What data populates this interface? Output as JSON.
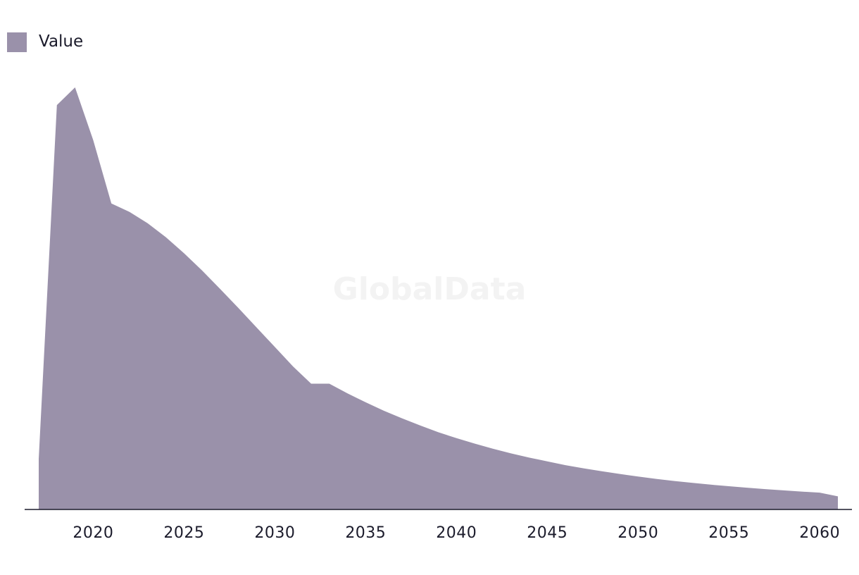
{
  "watermark": "GlobalData",
  "chart_data": {
    "type": "area",
    "title": "",
    "xlabel": "",
    "ylabel": "",
    "legend": {
      "position": "top-left",
      "entries": [
        "Value"
      ]
    },
    "grid": false,
    "xlim": [
      2017,
      2061
    ],
    "ylim": [
      0,
      100
    ],
    "x_ticks": [
      2020,
      2025,
      2030,
      2035,
      2040,
      2045,
      2050,
      2055,
      2060
    ],
    "series": [
      {
        "name": "Value",
        "color": "#9a91aa",
        "x": [
          2017,
          2018,
          2019,
          2020,
          2021,
          2022,
          2023,
          2024,
          2025,
          2026,
          2027,
          2028,
          2029,
          2030,
          2031,
          2032,
          2033,
          2034,
          2035,
          2036,
          2037,
          2038,
          2039,
          2040,
          2041,
          2042,
          2043,
          2044,
          2045,
          2046,
          2047,
          2048,
          2049,
          2050,
          2051,
          2052,
          2053,
          2054,
          2055,
          2056,
          2057,
          2058,
          2059,
          2060,
          2061
        ],
        "values": [
          12,
          95.8,
          100,
          87.5,
          72.5,
          70.5,
          67.8,
          64.5,
          60.7,
          56.6,
          52.2,
          47.7,
          43.1,
          38.5,
          33.9,
          29.8,
          29.8,
          27.5,
          25.4,
          23.4,
          21.6,
          19.9,
          18.3,
          16.9,
          15.6,
          14.4,
          13.3,
          12.3,
          11.4,
          10.5,
          9.75,
          9.05,
          8.4,
          7.8,
          7.25,
          6.75,
          6.3,
          5.88,
          5.5,
          5.15,
          4.82,
          4.52,
          4.24,
          3.98,
          3.1
        ]
      }
    ]
  }
}
